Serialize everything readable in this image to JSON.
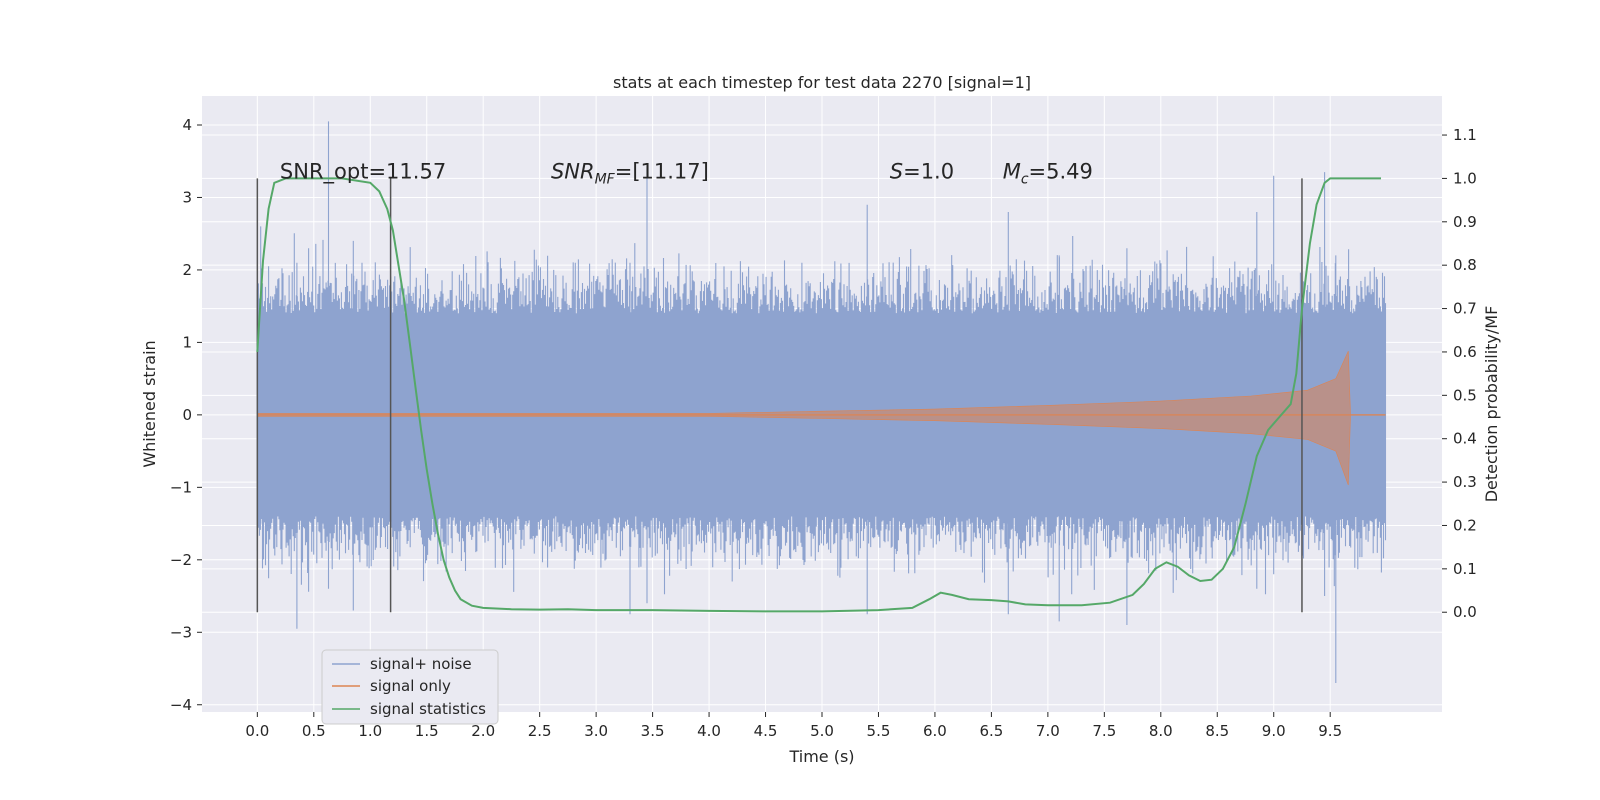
{
  "chart_data": {
    "type": "line",
    "title": "stats at each timestep for test data 2270 [signal=1]",
    "xlabel": "Time (s)",
    "ylabel": "Whitened strain",
    "y2label": "Detection probability/MF",
    "xlim": [
      -0.49,
      10.49
    ],
    "ylim": [
      -4.1,
      4.4
    ],
    "y2lim": [
      -0.23,
      1.19
    ],
    "x_ticks": [
      0.0,
      0.5,
      1.0,
      1.5,
      2.0,
      2.5,
      3.0,
      3.5,
      4.0,
      4.5,
      5.0,
      5.5,
      6.0,
      6.5,
      7.0,
      7.5,
      8.0,
      8.5,
      9.0,
      9.5
    ],
    "x_tick_labels": [
      "0.0",
      "0.5",
      "1.0",
      "1.5",
      "2.0",
      "2.5",
      "3.0",
      "3.5",
      "4.0",
      "4.5",
      "5.0",
      "5.5",
      "6.0",
      "6.5",
      "7.0",
      "7.5",
      "8.0",
      "8.5",
      "9.0",
      "9.5"
    ],
    "y_ticks": [
      4,
      3,
      2,
      1,
      0,
      -1,
      -2,
      -3,
      -4
    ],
    "y_tick_labels": [
      "4",
      "3",
      "2",
      "1",
      "0",
      "−1",
      "−2",
      "−3",
      "−4"
    ],
    "y2_ticks": [
      1.1,
      1.0,
      0.9,
      0.8,
      0.7,
      0.6,
      0.5,
      0.4,
      0.3,
      0.2,
      0.1,
      0.0
    ],
    "y2_tick_labels": [
      "1.1",
      "1.0",
      "0.9",
      "0.8",
      "0.7",
      "0.6",
      "0.5",
      "0.4",
      "0.3",
      "0.2",
      "0.1",
      "0.0"
    ],
    "grid": true,
    "legend_position": "lower-left",
    "colors": {
      "background": "#eaeaf2",
      "grid": "#ffffff",
      "noise": "#8ea3cf",
      "signal": "#dd8452",
      "stats": "#55a868",
      "vline": "#555555"
    },
    "series": [
      {
        "name": "signal+ noise",
        "axis": "left",
        "style": "noise band",
        "t_range": [
          0.0,
          9.99
        ],
        "core_amplitude": 1.4,
        "typical_peak": 2.0,
        "max": 4.05,
        "min": -3.7
      },
      {
        "name": "signal only",
        "axis": "left",
        "style": "chirp",
        "t_range": [
          0.0,
          9.99
        ],
        "merger_time": 9.66,
        "envelope": [
          [
            0.0,
            0.02
          ],
          [
            4.0,
            0.02
          ],
          [
            5.0,
            0.05
          ],
          [
            6.0,
            0.08
          ],
          [
            7.0,
            0.13
          ],
          [
            8.0,
            0.19
          ],
          [
            8.8,
            0.26
          ],
          [
            9.3,
            0.34
          ],
          [
            9.55,
            0.5
          ],
          [
            9.66,
            0.88
          ],
          [
            9.68,
            0.0
          ],
          [
            9.99,
            0.0
          ]
        ]
      },
      {
        "name": "signal statistics",
        "axis": "right",
        "points": [
          [
            0.0,
            0.6
          ],
          [
            0.05,
            0.81
          ],
          [
            0.1,
            0.93
          ],
          [
            0.15,
            0.99
          ],
          [
            0.25,
            1.0
          ],
          [
            0.5,
            1.0
          ],
          [
            0.75,
            1.0
          ],
          [
            1.0,
            0.99
          ],
          [
            1.08,
            0.97
          ],
          [
            1.15,
            0.93
          ],
          [
            1.2,
            0.88
          ],
          [
            1.25,
            0.8
          ],
          [
            1.3,
            0.72
          ],
          [
            1.35,
            0.62
          ],
          [
            1.4,
            0.52
          ],
          [
            1.45,
            0.42
          ],
          [
            1.5,
            0.33
          ],
          [
            1.55,
            0.25
          ],
          [
            1.6,
            0.18
          ],
          [
            1.65,
            0.12
          ],
          [
            1.7,
            0.08
          ],
          [
            1.75,
            0.05
          ],
          [
            1.8,
            0.03
          ],
          [
            1.9,
            0.015
          ],
          [
            2.0,
            0.01
          ],
          [
            2.25,
            0.007
          ],
          [
            2.5,
            0.006
          ],
          [
            2.75,
            0.007
          ],
          [
            3.0,
            0.005
          ],
          [
            3.5,
            0.005
          ],
          [
            4.0,
            0.003
          ],
          [
            4.5,
            0.002
          ],
          [
            5.0,
            0.002
          ],
          [
            5.5,
            0.005
          ],
          [
            5.8,
            0.01
          ],
          [
            5.95,
            0.03
          ],
          [
            6.05,
            0.045
          ],
          [
            6.15,
            0.04
          ],
          [
            6.3,
            0.03
          ],
          [
            6.5,
            0.028
          ],
          [
            6.65,
            0.025
          ],
          [
            6.8,
            0.018
          ],
          [
            7.0,
            0.016
          ],
          [
            7.3,
            0.016
          ],
          [
            7.55,
            0.022
          ],
          [
            7.75,
            0.04
          ],
          [
            7.85,
            0.065
          ],
          [
            7.95,
            0.1
          ],
          [
            8.05,
            0.115
          ],
          [
            8.15,
            0.105
          ],
          [
            8.25,
            0.085
          ],
          [
            8.35,
            0.072
          ],
          [
            8.45,
            0.075
          ],
          [
            8.55,
            0.1
          ],
          [
            8.65,
            0.15
          ],
          [
            8.75,
            0.25
          ],
          [
            8.85,
            0.36
          ],
          [
            8.95,
            0.42
          ],
          [
            9.05,
            0.45
          ],
          [
            9.15,
            0.48
          ],
          [
            9.2,
            0.55
          ],
          [
            9.25,
            0.7
          ],
          [
            9.32,
            0.85
          ],
          [
            9.38,
            0.94
          ],
          [
            9.45,
            0.99
          ],
          [
            9.5,
            1.0
          ],
          [
            9.75,
            1.0
          ],
          [
            9.95,
            1.0
          ]
        ]
      }
    ],
    "vertical_lines": [
      0.0,
      1.18,
      9.25
    ],
    "vertical_lines_range": [
      -0.0,
      1.0
    ],
    "annotations": [
      {
        "x": 0.2,
        "y": 1.0,
        "text": "SNR_opt=11.57"
      },
      {
        "x": 2.6,
        "y": 1.0,
        "prefix": "SNR",
        "sub": "MF",
        "suffix": "=[11.17]"
      },
      {
        "x": 5.6,
        "y": 1.0,
        "prefix": "S",
        "sub": "",
        "suffix": "=1.0"
      },
      {
        "x": 6.6,
        "y": 1.0,
        "prefix": "M",
        "sub": "c",
        "suffix": "=5.49"
      }
    ]
  }
}
